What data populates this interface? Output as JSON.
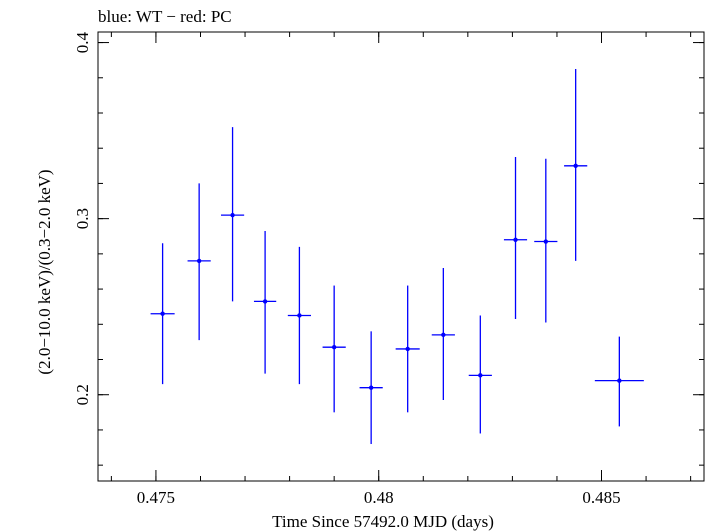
{
  "chart_data": {
    "type": "scatter",
    "title": "blue: WT − red: PC",
    "xlabel": "Time Since 57492.0 MJD (days)",
    "ylabel": "(2.0−10.0 keV)/(0.3−2.0 keV)",
    "xlim": [
      0.4737,
      0.4873
    ],
    "ylim": [
      0.151,
      0.406
    ],
    "x_ticks": [
      {
        "value": 0.475,
        "label": "0.475"
      },
      {
        "value": 0.48,
        "label": "0.48"
      },
      {
        "value": 0.485,
        "label": "0.485"
      }
    ],
    "y_ticks": [
      {
        "value": 0.2,
        "label": "0.2"
      },
      {
        "value": 0.3,
        "label": "0.3"
      },
      {
        "value": 0.4,
        "label": "0.4"
      }
    ],
    "x_minor_step": 0.001,
    "y_minor_step": 0.02,
    "series": [
      {
        "name": "WT",
        "color": "#0000ff",
        "points": [
          {
            "x": 0.47515,
            "xerr": 0.00027,
            "y": 0.246,
            "ylo": 0.206,
            "yhi": 0.286
          },
          {
            "x": 0.47597,
            "xerr": 0.00026,
            "y": 0.276,
            "ylo": 0.231,
            "yhi": 0.32
          },
          {
            "x": 0.47672,
            "xerr": 0.00026,
            "y": 0.302,
            "ylo": 0.253,
            "yhi": 0.352
          },
          {
            "x": 0.47745,
            "xerr": 0.00025,
            "y": 0.253,
            "ylo": 0.212,
            "yhi": 0.293
          },
          {
            "x": 0.47822,
            "xerr": 0.00026,
            "y": 0.245,
            "ylo": 0.206,
            "yhi": 0.284
          },
          {
            "x": 0.479,
            "xerr": 0.00026,
            "y": 0.227,
            "ylo": 0.19,
            "yhi": 0.262
          },
          {
            "x": 0.47983,
            "xerr": 0.00026,
            "y": 0.204,
            "ylo": 0.172,
            "yhi": 0.236
          },
          {
            "x": 0.48065,
            "xerr": 0.00027,
            "y": 0.226,
            "ylo": 0.19,
            "yhi": 0.262
          },
          {
            "x": 0.48145,
            "xerr": 0.00026,
            "y": 0.234,
            "ylo": 0.197,
            "yhi": 0.272
          },
          {
            "x": 0.48228,
            "xerr": 0.00026,
            "y": 0.211,
            "ylo": 0.178,
            "yhi": 0.245
          },
          {
            "x": 0.48307,
            "xerr": 0.00026,
            "y": 0.288,
            "ylo": 0.243,
            "yhi": 0.335
          },
          {
            "x": 0.48375,
            "xerr": 0.00026,
            "y": 0.287,
            "ylo": 0.241,
            "yhi": 0.334
          },
          {
            "x": 0.48442,
            "xerr": 0.00026,
            "y": 0.33,
            "ylo": 0.276,
            "yhi": 0.385
          },
          {
            "x": 0.4854,
            "xerr": 0.00055,
            "y": 0.208,
            "ylo": 0.182,
            "yhi": 0.233
          }
        ]
      }
    ]
  }
}
